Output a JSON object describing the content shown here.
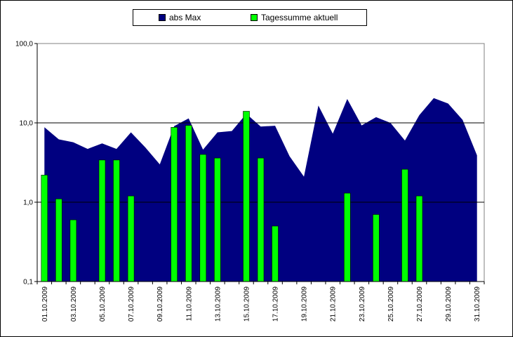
{
  "chart_data": {
    "type": "bar",
    "title": "",
    "xlabel": "",
    "ylabel": "",
    "yscale": "log",
    "ylim": [
      0.1,
      100
    ],
    "y_ticks": [
      {
        "value": 0.1,
        "label": "0,1"
      },
      {
        "value": 1,
        "label": "1,0"
      },
      {
        "value": 10,
        "label": "10,0"
      },
      {
        "value": 100,
        "label": "100,0"
      }
    ],
    "categories": [
      "01.10.2009",
      "02.10.2009",
      "03.10.2009",
      "04.10.2009",
      "05.10.2009",
      "06.10.2009",
      "07.10.2009",
      "08.10.2009",
      "09.10.2009",
      "10.10.2009",
      "11.10.2009",
      "12.10.2009",
      "13.10.2009",
      "14.10.2009",
      "15.10.2009",
      "16.10.2009",
      "17.10.2009",
      "18.10.2009",
      "19.10.2009",
      "20.10.2009",
      "21.10.2009",
      "22.10.2009",
      "23.10.2009",
      "24.10.2009",
      "25.10.2009",
      "26.10.2009",
      "27.10.2009",
      "28.10.2009",
      "29.10.2009",
      "30.10.2009",
      "31.10.2009"
    ],
    "x_tick_labels": [
      "01.10.2009",
      "03.10.2009",
      "05.10.2009",
      "07.10.2009",
      "09.10.2009",
      "11.10.2009",
      "13.10.2009",
      "15.10.2009",
      "17.10.2009",
      "19.10.2009",
      "21.10.2009",
      "23.10.2009",
      "25.10.2009",
      "27.10.2009",
      "29.10.2009",
      "31.10.2009"
    ],
    "gridlines": [
      10
    ],
    "legend_position": "top",
    "series": [
      {
        "name": "abs Max",
        "type": "area",
        "color": "#000080",
        "values": [
          8.8,
          6.2,
          5.7,
          4.7,
          5.5,
          4.7,
          7.6,
          4.9,
          3.0,
          9.1,
          11.4,
          4.6,
          7.6,
          7.9,
          13.0,
          9.0,
          9.2,
          3.8,
          2.1,
          16.5,
          7.3,
          20.0,
          9.3,
          11.8,
          10.0,
          6.0,
          12.5,
          20.5,
          17.5,
          10.9,
          3.9
        ]
      },
      {
        "name": "Tagessumme aktuell",
        "type": "bar",
        "color": "#00ff00",
        "values": [
          2.2,
          1.1,
          0.6,
          null,
          3.4,
          3.4,
          1.2,
          null,
          null,
          8.8,
          9.3,
          4.0,
          3.6,
          null,
          14.0,
          3.6,
          0.5,
          null,
          null,
          null,
          null,
          1.3,
          null,
          0.7,
          null,
          2.6,
          1.2,
          null,
          null,
          null,
          null
        ]
      }
    ]
  }
}
